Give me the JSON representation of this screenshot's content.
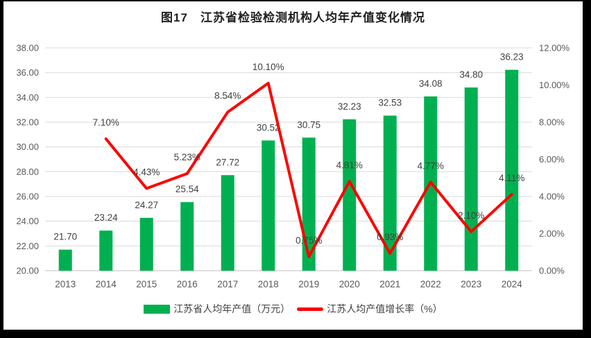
{
  "title": "图17　江苏省检验检测机构人均年产值变化情况",
  "colors": {
    "bar": "#00B050",
    "line": "#FF0000",
    "grid": "#D9D9D9",
    "axis_line": "#BFBFBF",
    "axis_text": "#595959",
    "value_label": "#404040",
    "border": "#000000",
    "background": "#FFFFFF"
  },
  "axes": {
    "left": {
      "ticks": [
        "38.00",
        "36.00",
        "34.00",
        "32.00",
        "30.00",
        "28.00",
        "26.00",
        "24.00",
        "22.00",
        "20.00"
      ]
    },
    "right": {
      "ticks": [
        "12.00%",
        "10.00%",
        "8.00%",
        "6.00%",
        "4.00%",
        "2.00%",
        "0.00%"
      ]
    }
  },
  "legend": {
    "items": [
      {
        "label": "江苏省人均年产值（万元）",
        "swatch": "bar"
      },
      {
        "label": "江苏人均产值增长率（%）",
        "swatch": "line"
      }
    ]
  },
  "chart_data": {
    "type": "combo-bar-line",
    "title": "图17　江苏省检验检测机构人均年产值变化情况",
    "categories": [
      "2013",
      "2014",
      "2015",
      "2016",
      "2017",
      "2018",
      "2019",
      "2020",
      "2021",
      "2022",
      "2023",
      "2024"
    ],
    "left_ylim": [
      20,
      38
    ],
    "right_ylim": [
      0,
      12
    ],
    "grid": "horizontal",
    "legend_position": "bottom",
    "series": [
      {
        "name": "江苏省人均年产值（万元）",
        "type": "bar",
        "axis": "left",
        "values": [
          21.7,
          23.24,
          24.27,
          25.54,
          27.72,
          30.52,
          30.75,
          32.23,
          32.53,
          34.08,
          34.8,
          36.23
        ],
        "labels": [
          "21.70",
          "23.24",
          "24.27",
          "25.54",
          "27.72",
          "30.52",
          "30.75",
          "32.23",
          "32.53",
          "34.08",
          "34.80",
          "36.23"
        ]
      },
      {
        "name": "江苏人均产值增长率（%）",
        "type": "line",
        "axis": "right",
        "values": [
          null,
          7.1,
          4.43,
          5.23,
          8.54,
          10.1,
          0.75,
          4.81,
          0.93,
          4.77,
          2.1,
          4.11
        ],
        "labels": [
          null,
          "7.10%",
          "4.43%",
          "5.23%",
          "8.54%",
          "10.10%",
          "0.75%",
          "4.81%",
          "0.93%",
          "4.77%",
          "2.10%",
          "4.11%"
        ]
      }
    ]
  }
}
